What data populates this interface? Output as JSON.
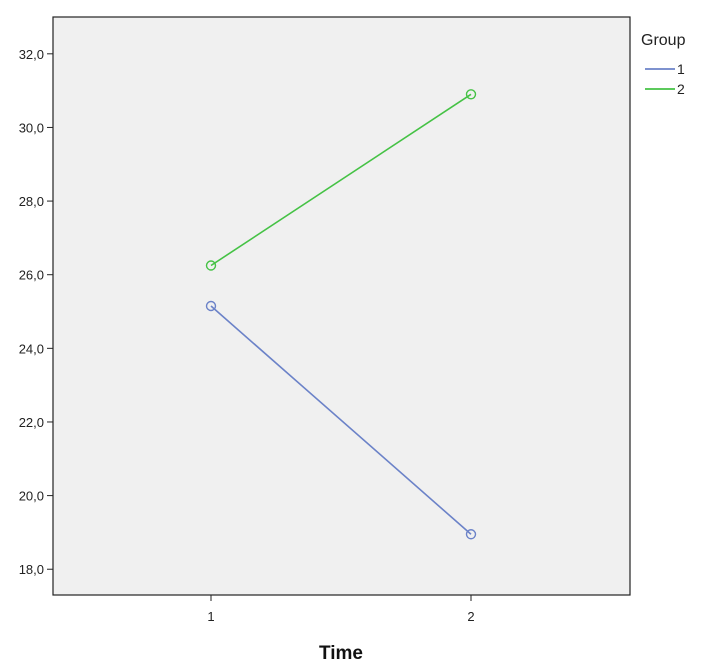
{
  "chart_data": {
    "type": "line",
    "title": "",
    "xlabel": "Time",
    "ylabel": "",
    "categories": [
      "1",
      "2"
    ],
    "ylim": [
      17.3,
      33.0
    ],
    "y_ticks": [
      18,
      20,
      22,
      24,
      26,
      28,
      30,
      32
    ],
    "y_tick_labels": [
      "18,0",
      "20,0",
      "22,0",
      "24,0",
      "26,0",
      "28,0",
      "30,0",
      "32,0"
    ],
    "grid": false,
    "legend": {
      "title": "Group",
      "position": "top-right"
    },
    "series": [
      {
        "name": "1",
        "values": [
          25.15,
          18.95
        ],
        "color": "#6b82c8",
        "marker": "open-circle"
      },
      {
        "name": "2",
        "values": [
          26.25,
          30.9
        ],
        "color": "#45c245",
        "marker": "open-circle"
      }
    ],
    "plot_background": "#f0f0f0"
  }
}
